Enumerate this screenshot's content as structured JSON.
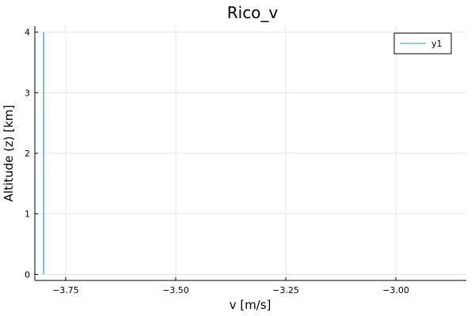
{
  "chart_data": {
    "type": "line",
    "title": "Rico_v",
    "xlabel": "v [m/s]",
    "ylabel": "Altitude (z) [km]",
    "xlim": [
      -3.82,
      -2.84
    ],
    "ylim": [
      -0.1,
      4.1
    ],
    "x_ticks": [
      -3.75,
      -3.5,
      -3.25,
      -3.0
    ],
    "x_tick_labels": [
      "−3.75",
      "−3.50",
      "−3.25",
      "−3.00"
    ],
    "y_ticks": [
      0,
      1,
      2,
      3,
      4
    ],
    "y_tick_labels": [
      "0",
      "1",
      "2",
      "3",
      "4"
    ],
    "grid": true,
    "legend_position": "top-right",
    "series": [
      {
        "name": "y1",
        "color": "#00a9e0",
        "x": [
          -3.8,
          -3.8,
          -3.8,
          -3.8,
          -3.8
        ],
        "y": [
          0,
          1,
          2,
          3,
          4
        ]
      }
    ]
  }
}
